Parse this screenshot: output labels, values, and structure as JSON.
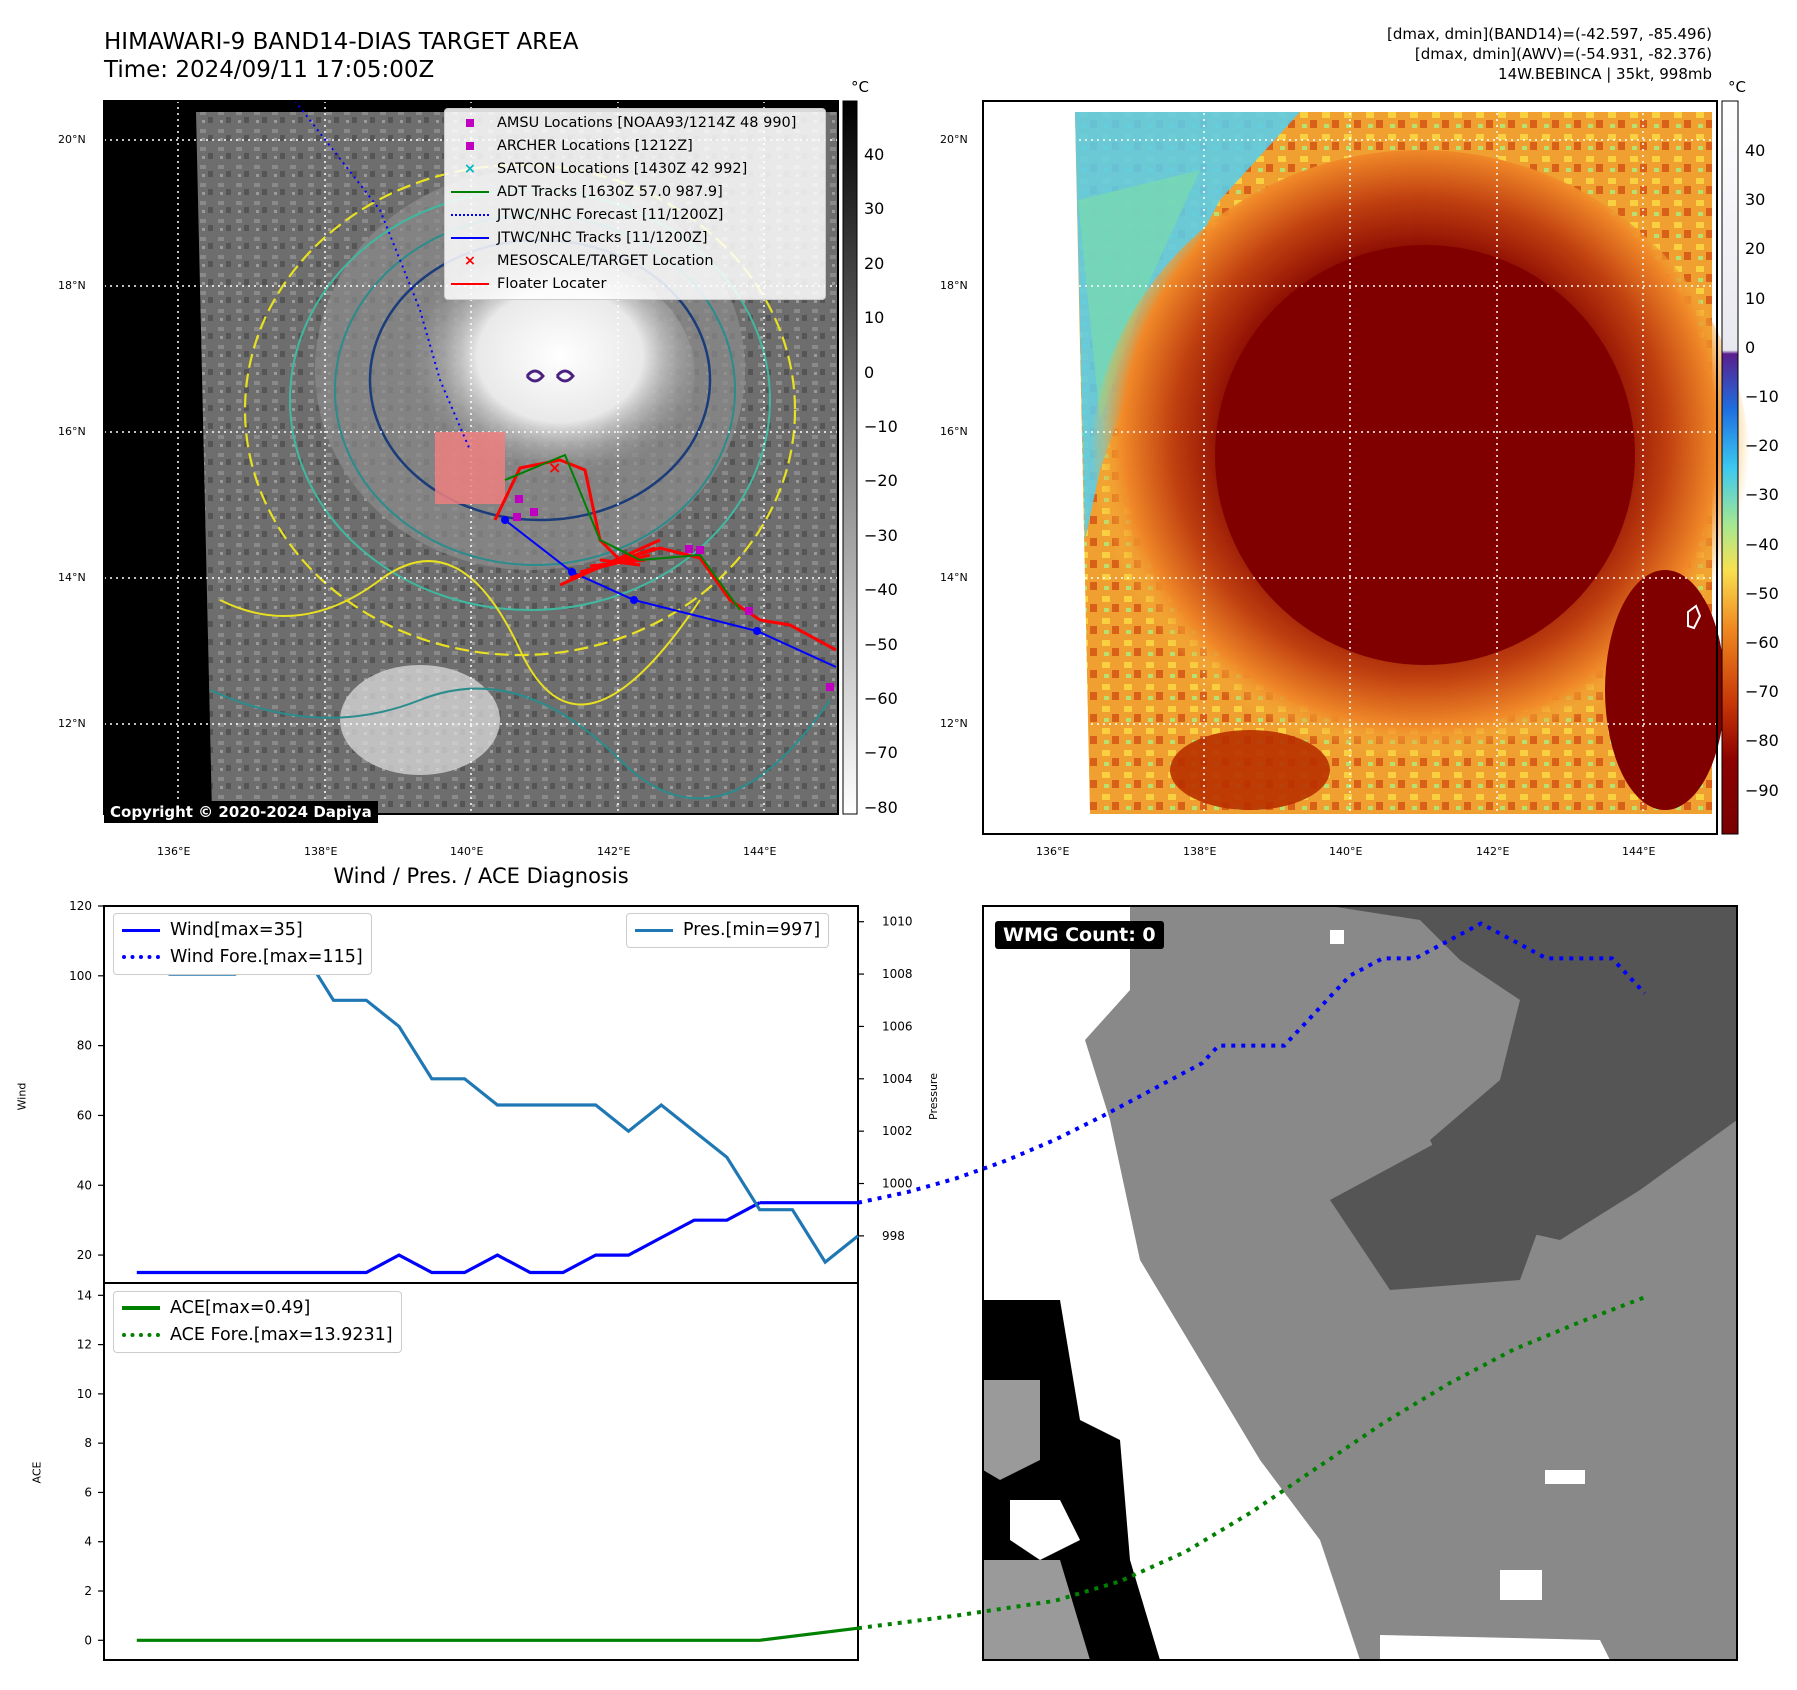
{
  "header": {
    "title_line1": "HIMAWARI-9 BAND14-DIAS TARGET AREA",
    "title_line2": "Time: 2024/09/11 17:05:00Z",
    "info_line1": "[dmax, dmin](BAND14)=(-42.597, -85.496)",
    "info_line2": "[dmax, dmin](AWV)=(-54.931, -82.376)",
    "info_line3": "14W.BEBINCA | 35kt, 998mb"
  },
  "map": {
    "lat_labels": [
      "20°N",
      "18°N",
      "16°N",
      "14°N",
      "12°N"
    ],
    "lon_labels": [
      "136°E",
      "138°E",
      "140°E",
      "142°E",
      "144°E"
    ],
    "copyright": "Copyright © 2020-2024 Dapiya",
    "legend": [
      {
        "label": "AMSU Locations [NOAA93/1214Z 48 990]",
        "color": "#c000c0",
        "marker": "square"
      },
      {
        "label": "ARCHER Locations [1212Z]",
        "color": "#c000c0",
        "marker": "square"
      },
      {
        "label": "SATCON Locations [1430Z 42 992]",
        "color": "#00b8c0",
        "marker": "x"
      },
      {
        "label": "ADT Tracks [1630Z 57.0 987.9]",
        "color": "#008000",
        "marker": "line"
      },
      {
        "label": "JTWC/NHC Forecast [11/1200Z]",
        "color": "#0000ff",
        "marker": "dotted"
      },
      {
        "label": "JTWC/NHC Tracks [11/1200Z]",
        "color": "#0000ff",
        "marker": "line-dot"
      },
      {
        "label": "MESOSCALE/TARGET Location",
        "color": "#ff0000",
        "marker": "x"
      },
      {
        "label": "Floater Locater",
        "color": "#ff0000",
        "marker": "line"
      }
    ],
    "gray_colorbar": {
      "unit": "°C",
      "ticks": [
        "40",
        "30",
        "20",
        "10",
        "0",
        "−10",
        "−20",
        "−30",
        "−40",
        "−50",
        "−60",
        "−70",
        "−80"
      ]
    },
    "color_colorbar": {
      "unit": "°C",
      "ticks": [
        "40",
        "30",
        "20",
        "10",
        "0",
        "−10",
        "−20",
        "−30",
        "−40",
        "−50",
        "−60",
        "−70",
        "−80",
        "−90"
      ]
    }
  },
  "wmg": {
    "label": "WMG Count: 0"
  },
  "chart_data": [
    {
      "type": "line",
      "title": "Wind / Pres. / ACE Diagnosis",
      "ylabel": "Wind",
      "ylim": [
        12,
        120
      ],
      "yticks": [
        20,
        40,
        60,
        80,
        100,
        120
      ],
      "y2label": "Pressure",
      "y2lim": [
        996.2,
        1010.6
      ],
      "y2ticks": [
        998,
        1000,
        1002,
        1004,
        1006,
        1008,
        1010
      ],
      "xlim": [
        0,
        46
      ],
      "legend_left": [
        "Wind[max=35]",
        "Wind Fore.[max=115]"
      ],
      "legend_right": [
        "Pres.[min=997]"
      ],
      "series": [
        {
          "name": "Wind[max=35]",
          "color": "#0000ff",
          "style": "solid",
          "x": [
            2,
            4,
            6,
            8,
            10,
            12,
            14,
            16,
            18,
            20,
            22,
            24,
            26,
            28,
            30,
            32,
            34,
            36,
            38,
            40
          ],
          "y": [
            15,
            15,
            15,
            15,
            15,
            15,
            15,
            15,
            20,
            15,
            15,
            20,
            15,
            15,
            20,
            20,
            25,
            30,
            30,
            35
          ]
        },
        {
          "name": "Wind[max=35] (cont.)",
          "color": "#0000ff",
          "style": "solid",
          "x": [
            40,
            42,
            44,
            46
          ],
          "y": [
            35,
            35,
            35,
            35
          ]
        },
        {
          "name": "Wind Fore.[max=115]",
          "color": "#0000ff",
          "style": "dotted",
          "x": [
            46,
            49,
            52,
            55,
            58,
            61,
            63,
            65,
            67,
            68,
            70,
            72,
            74,
            76,
            78,
            80,
            82,
            84,
            86,
            88,
            90,
            92,
            94
          ],
          "y": [
            35,
            38,
            42,
            47,
            53,
            60,
            65,
            70,
            75,
            80,
            80,
            80,
            90,
            100,
            105,
            105,
            110,
            115,
            110,
            105,
            105,
            105,
            95
          ]
        },
        {
          "name": "Pres.[min=997]",
          "color": "#1f77b4",
          "style": "solid",
          "axis": "y2",
          "x": [
            2,
            4,
            6,
            8,
            10,
            12,
            14,
            16,
            18,
            20,
            22,
            24,
            26,
            28,
            30,
            32,
            34,
            36,
            38,
            40,
            42,
            44,
            46
          ],
          "y": [
            1010,
            1008,
            1008,
            1008,
            1009,
            1009,
            1007,
            1007,
            1006,
            1004,
            1004,
            1003,
            1003,
            1003,
            1003,
            1002,
            1003,
            1002,
            1001,
            999,
            999,
            997,
            998
          ]
        }
      ]
    },
    {
      "type": "line",
      "ylabel": "ACE",
      "ylim": [
        -0.8,
        14.5
      ],
      "yticks": [
        0,
        2,
        4,
        6,
        8,
        10,
        12,
        14
      ],
      "xlim": [
        0,
        46
      ],
      "legend_left": [
        "ACE[max=0.49]",
        "ACE Fore.[max=13.9231]"
      ],
      "series": [
        {
          "name": "ACE[max=0.49]",
          "color": "#008000",
          "style": "solid",
          "x": [
            2,
            40,
            46
          ],
          "y": [
            0,
            0,
            0.49
          ]
        },
        {
          "name": "ACE Fore.[max=13.9231]",
          "color": "#008000",
          "style": "dotted",
          "x": [
            46,
            52,
            58,
            62,
            66,
            70,
            74,
            78,
            82,
            86,
            90,
            94
          ],
          "y": [
            0.49,
            1.0,
            1.6,
            2.4,
            3.6,
            5.2,
            7.0,
            8.8,
            10.4,
            11.8,
            12.9,
            13.9231
          ]
        }
      ]
    }
  ]
}
